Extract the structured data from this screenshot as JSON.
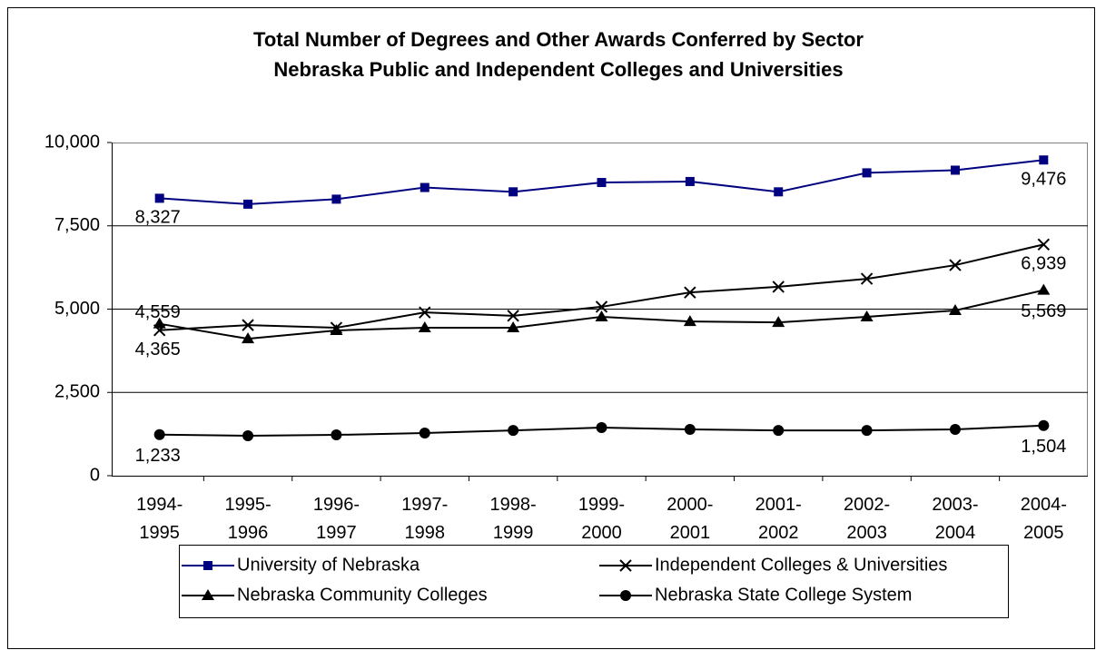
{
  "chart_data": {
    "type": "line",
    "title": [
      "Total Number of Degrees and Other Awards Conferred by Sector",
      "Nebraska Public and Independent Colleges and Universities"
    ],
    "categories": [
      "1994-1995",
      "1995-1996",
      "1996-1997",
      "1997-1998",
      "1998-1999",
      "1999-2000",
      "2000-2001",
      "2001-2002",
      "2002-2003",
      "2003-2004",
      "2004-2005"
    ],
    "ylim": [
      0,
      10000
    ],
    "yticks": [
      0,
      {
        "value": 2500,
        "label": "2,500"
      },
      {
        "value": 5000,
        "label": "5,000"
      },
      {
        "value": 7500,
        "label": "7,500"
      },
      {
        "value": 10000,
        "label": "10,000"
      }
    ],
    "grid": true,
    "legend": "bottom",
    "series": [
      {
        "name": "University of Nebraska",
        "color": "#000080",
        "marker": "square",
        "values": [
          8327,
          8150,
          8300,
          8650,
          8520,
          8800,
          8830,
          8520,
          9090,
          9170,
          9476
        ],
        "value_labels": [
          "8,327",
          null,
          null,
          null,
          null,
          null,
          null,
          null,
          null,
          null,
          "9,476"
        ]
      },
      {
        "name": "Independent Colleges & Universities",
        "color": "#000000",
        "marker": "x",
        "values": [
          4365,
          4520,
          4440,
          4900,
          4800,
          5070,
          5500,
          5670,
          5910,
          6320,
          6939
        ],
        "value_labels": [
          "4,365",
          null,
          null,
          null,
          null,
          null,
          null,
          null,
          null,
          null,
          "6,939"
        ]
      },
      {
        "name": "Nebraska Community Colleges",
        "color": "#000000",
        "marker": "triangle",
        "values": [
          4559,
          4110,
          4360,
          4440,
          4440,
          4770,
          4630,
          4600,
          4770,
          4960,
          5569
        ],
        "value_labels": [
          "4,559",
          null,
          null,
          null,
          null,
          null,
          null,
          null,
          null,
          null,
          "5,569"
        ]
      },
      {
        "name": "Nebraska State College System",
        "color": "#000000",
        "marker": "circle",
        "values": [
          1233,
          1200,
          1225,
          1280,
          1360,
          1445,
          1390,
          1360,
          1360,
          1390,
          1504
        ],
        "value_labels": [
          "1,233",
          null,
          null,
          null,
          null,
          null,
          null,
          null,
          null,
          null,
          "1,504"
        ]
      }
    ]
  }
}
